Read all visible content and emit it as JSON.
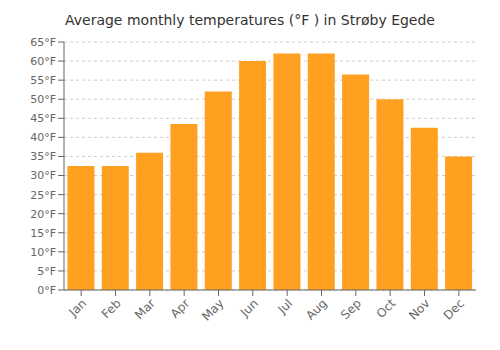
{
  "chart_data": {
    "type": "bar",
    "title": "Average monthly temperatures (°F ) in Strøby Egede",
    "categories": [
      "Jan",
      "Feb",
      "Mar",
      "Apr",
      "May",
      "Jun",
      "Jul",
      "Aug",
      "Sep",
      "Oct",
      "Nov",
      "Dec"
    ],
    "values": [
      32.5,
      32.5,
      36.0,
      43.5,
      52.0,
      60.0,
      62.0,
      62.0,
      56.5,
      50.0,
      42.5,
      35.0
    ],
    "color": "#FFA020",
    "ylim": [
      0,
      65
    ],
    "yticks": [
      {
        "value": 0,
        "label": "0°F"
      },
      {
        "value": 5,
        "label": "5°F"
      },
      {
        "value": 10,
        "label": "10°F"
      },
      {
        "value": 15,
        "label": "15°F"
      },
      {
        "value": 20,
        "label": "20°F"
      },
      {
        "value": 25,
        "label": "25°F"
      },
      {
        "value": 30,
        "label": "30°F"
      },
      {
        "value": 35,
        "label": "35°F"
      },
      {
        "value": 40,
        "label": "40°F"
      },
      {
        "value": 45,
        "label": "45°F"
      },
      {
        "value": 50,
        "label": "50°F"
      },
      {
        "value": 55,
        "label": "55°F"
      },
      {
        "value": 60,
        "label": "60°F"
      },
      {
        "value": 65,
        "label": "65°F"
      }
    ],
    "grid": true
  }
}
